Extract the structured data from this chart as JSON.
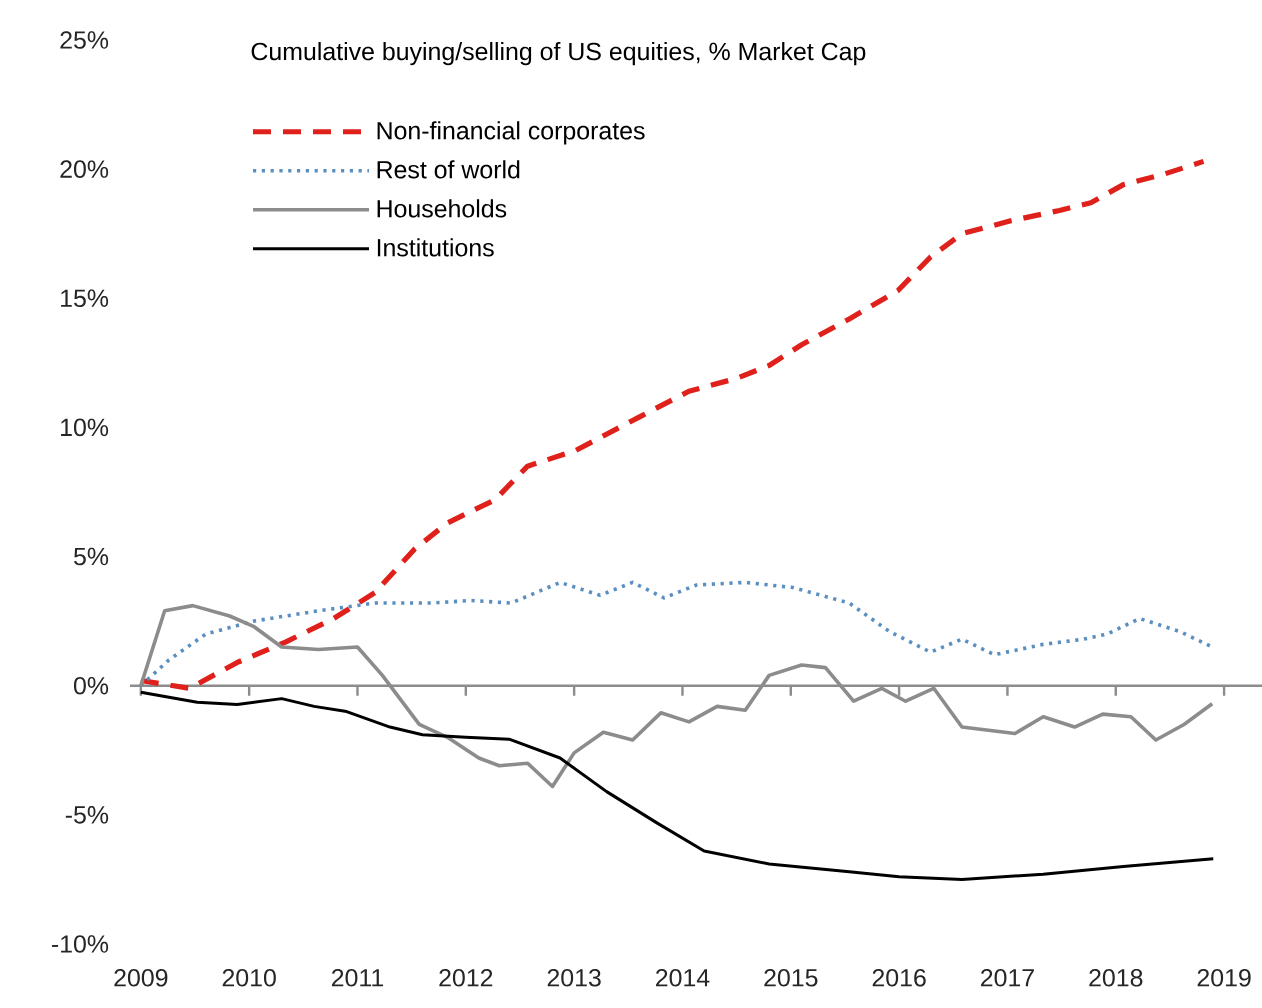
{
  "chart_data": {
    "type": "line",
    "title": "Cumulative buying/selling of US equities, % Market Cap",
    "legend": "top left",
    "xlim": [
      2008.9,
      2019.35
    ],
    "xticks": [
      2009,
      2010,
      2011,
      2012,
      2013,
      2014,
      2015,
      2016,
      2017,
      2018,
      2019
    ],
    "ylim": [
      -10,
      25
    ],
    "yticks": [
      {
        "value": -10,
        "label": "-10%"
      },
      {
        "value": -5,
        "label": "-5%"
      },
      {
        "value": 0,
        "label": "0%"
      },
      {
        "value": 5,
        "label": "5%"
      },
      {
        "value": 10,
        "label": "10%"
      },
      {
        "value": 15,
        "label": "15%"
      },
      {
        "value": 20,
        "label": "20%"
      },
      {
        "value": 25,
        "label": "25%"
      }
    ],
    "series": [
      {
        "name": "Non-financial corporates",
        "color": "#e0201b",
        "line_style": "dashed",
        "x": [
          2009.0,
          2009.45,
          2009.89,
          2010.34,
          2010.78,
          2011.16,
          2011.53,
          2011.83,
          2012.27,
          2012.57,
          2013.01,
          2013.6,
          2014.06,
          2014.5,
          2014.8,
          2015.1,
          2015.54,
          2015.99,
          2016.29,
          2016.58,
          2017.03,
          2017.48,
          2017.77,
          2018.07,
          2018.44,
          2018.81
        ],
        "values": [
          0.2,
          -0.1,
          0.9,
          1.7,
          2.6,
          3.6,
          5.3,
          6.3,
          7.2,
          8.5,
          9.1,
          10.4,
          11.4,
          11.9,
          12.4,
          13.2,
          14.2,
          15.3,
          16.6,
          17.5,
          18.0,
          18.4,
          18.7,
          19.4,
          19.8,
          20.3
        ]
      },
      {
        "name": "Rest of world",
        "color": "#5b8fc0",
        "line_style": "dotted",
        "x": [
          2009.0,
          2009.26,
          2009.6,
          2010.04,
          2010.64,
          2011.16,
          2011.68,
          2012.05,
          2012.42,
          2012.87,
          2013.24,
          2013.54,
          2013.83,
          2014.13,
          2014.58,
          2015.02,
          2015.54,
          2015.91,
          2016.29,
          2016.58,
          2016.88,
          2017.33,
          2017.7,
          2017.92,
          2018.22,
          2018.59,
          2018.89
        ],
        "values": [
          0,
          1.0,
          2.0,
          2.5,
          2.9,
          3.2,
          3.2,
          3.3,
          3.2,
          4.0,
          3.5,
          4.0,
          3.4,
          3.9,
          4.0,
          3.8,
          3.2,
          2.1,
          1.3,
          1.8,
          1.2,
          1.6,
          1.8,
          2.0,
          2.6,
          2.1,
          1.5
        ]
      },
      {
        "name": "Households",
        "color": "#8c8c8c",
        "line_style": "solid",
        "x": [
          2009.0,
          2009.22,
          2009.48,
          2009.82,
          2010.04,
          2010.3,
          2010.64,
          2011.0,
          2011.23,
          2011.57,
          2011.83,
          2012.12,
          2012.31,
          2012.57,
          2012.8,
          2013.0,
          2013.27,
          2013.54,
          2013.8,
          2014.06,
          2014.32,
          2014.58,
          2014.8,
          2015.1,
          2015.32,
          2015.58,
          2015.84,
          2016.06,
          2016.32,
          2016.58,
          2017.07,
          2017.33,
          2017.62,
          2017.88,
          2018.14,
          2018.37,
          2018.63,
          2018.89
        ],
        "values": [
          0,
          2.9,
          3.1,
          2.7,
          2.3,
          1.5,
          1.4,
          1.5,
          0.4,
          -1.5,
          -2.0,
          -2.8,
          -3.1,
          -3.0,
          -3.9,
          -2.6,
          -1.8,
          -2.1,
          -1.05,
          -1.4,
          -0.8,
          -0.95,
          0.4,
          0.8,
          0.7,
          -0.6,
          -0.1,
          -0.6,
          -0.1,
          -1.6,
          -1.85,
          -1.2,
          -1.6,
          -1.1,
          -1.2,
          -2.1,
          -1.5,
          -0.7
        ]
      },
      {
        "name": "Institutions",
        "color": "#000000",
        "line_style": "solid",
        "x": [
          2009.0,
          2009.52,
          2009.89,
          2010.3,
          2010.6,
          2010.9,
          2011.3,
          2011.6,
          2012.0,
          2012.4,
          2012.87,
          2013.3,
          2013.76,
          2014.2,
          2014.8,
          2015.54,
          2016.0,
          2016.58,
          2017.33,
          2018.07,
          2018.9
        ],
        "values": [
          -0.25,
          -0.64,
          -0.73,
          -0.5,
          -0.8,
          -1.0,
          -1.6,
          -1.9,
          -2.0,
          -2.07,
          -2.8,
          -4.1,
          -5.3,
          -6.4,
          -6.9,
          -7.2,
          -7.4,
          -7.5,
          -7.3,
          -7.0,
          -6.7
        ]
      }
    ]
  }
}
